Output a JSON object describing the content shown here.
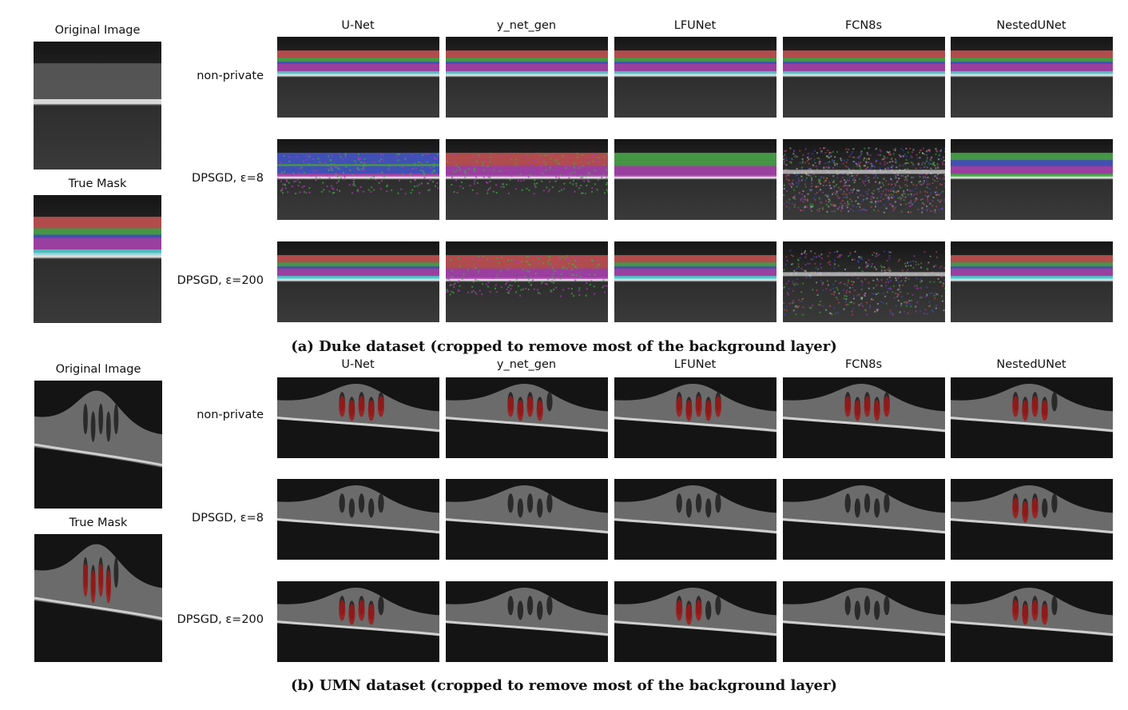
{
  "panels": [
    {
      "id": "duke",
      "caption": "(a) Duke dataset (cropped to remove most of the background layer)",
      "left_titles": {
        "original": "Original Image",
        "true_mask": "True Mask"
      },
      "columns": [
        "U-Net",
        "y_net_gen",
        "LFUNet",
        "FCN8s",
        "NestedUNet"
      ],
      "rows": [
        "non-private",
        "DPSGD, ε=8",
        "DPSGD, ε=200"
      ]
    },
    {
      "id": "umn",
      "caption": "(b) UMN dataset (cropped to remove most of the background layer)",
      "left_titles": {
        "original": "Original Image",
        "true_mask": "True Mask"
      },
      "columns": [
        "U-Net",
        "y_net_gen",
        "LFUNet",
        "FCN8s",
        "NestedUNet"
      ],
      "rows": [
        "non-private",
        "DPSGD, ε=8",
        "DPSGD, ε=200"
      ]
    }
  ],
  "colors": {
    "scan_background": "#1c1c1c",
    "retina_band": "#9a9a9a",
    "layer_red": "#d24a4a",
    "layer_green": "#3fae3f",
    "layer_blue": "#3a4fd8",
    "layer_magenta": "#b238b8",
    "layer_cyan": "#56d8e0",
    "fluid_red": "#a01818",
    "noise": "#8a7a8a"
  }
}
